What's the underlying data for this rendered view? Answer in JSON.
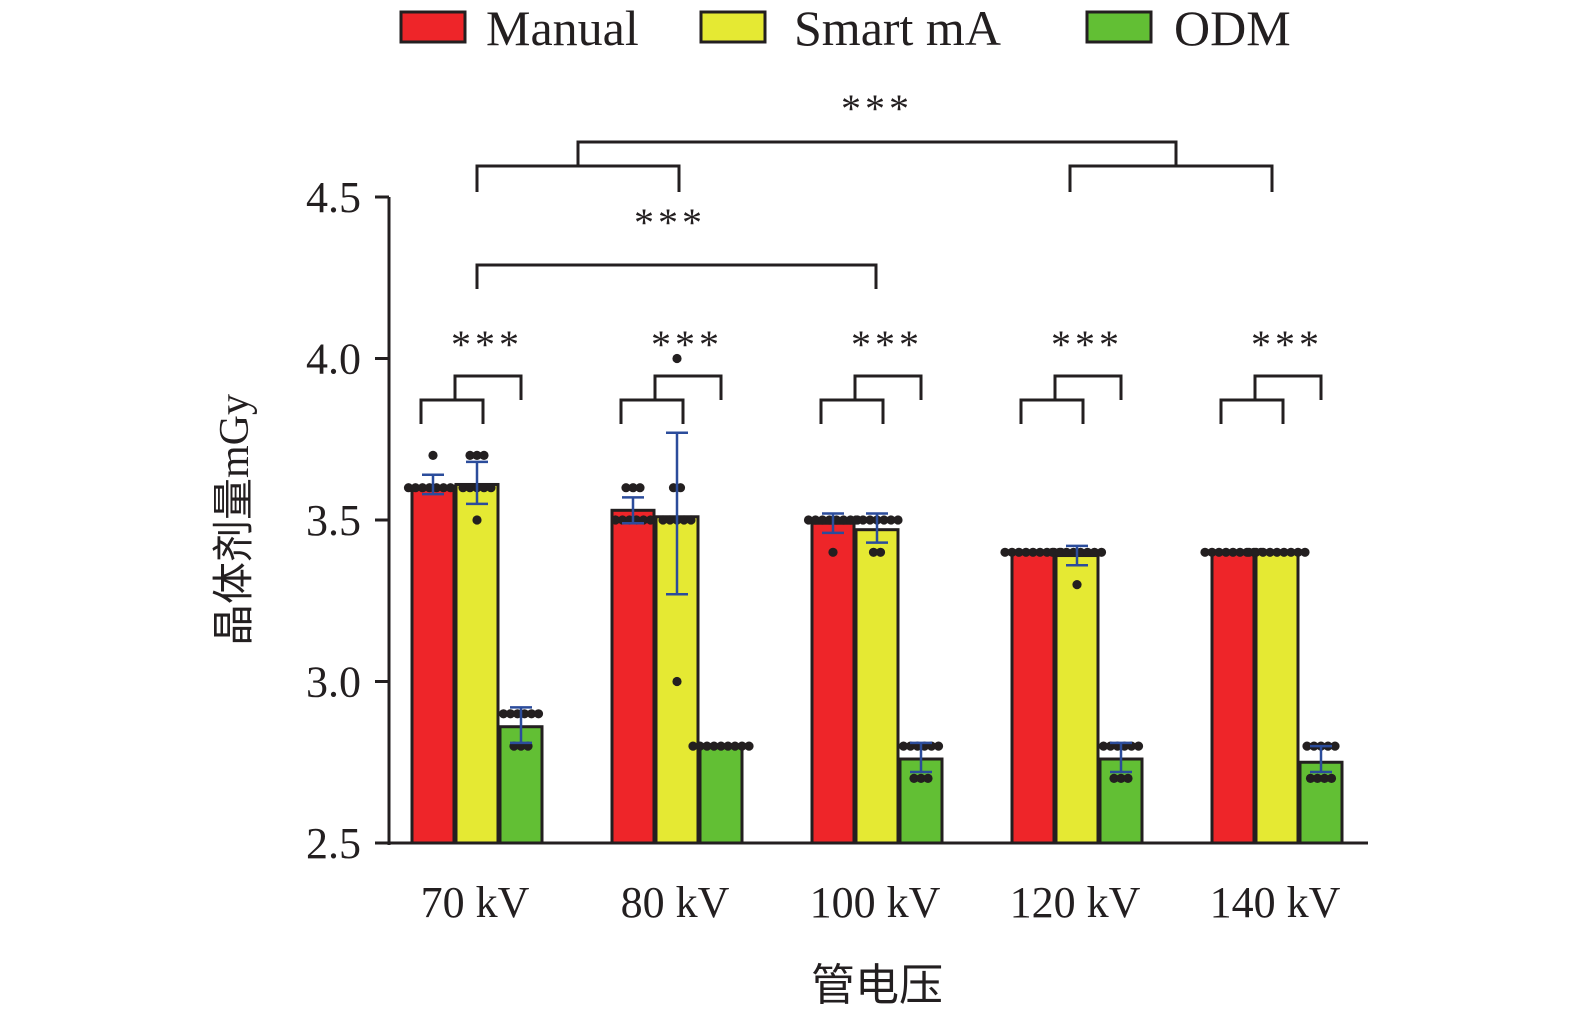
{
  "chart_data": {
    "type": "bar",
    "title": "",
    "xlabel": "管电压",
    "ylabel": "晶体剂量mGy",
    "ylim": [
      2.5,
      4.5
    ],
    "yticks": [
      "2.5",
      "3.0",
      "3.5",
      "4.0",
      "4.5"
    ],
    "ytick_values": [
      2.5,
      3.0,
      3.5,
      4.0,
      4.5
    ],
    "categories": [
      "70 kV",
      "80 kV",
      "100 kV",
      "120 kV",
      "140 kV"
    ],
    "legend_position": "top-center",
    "grid": false,
    "series": [
      {
        "name": "Manual",
        "color": "#ee2529",
        "values": [
          3.6,
          3.53,
          3.49,
          3.4,
          3.4
        ],
        "error": [
          [
            3.58,
            3.64
          ],
          [
            3.49,
            3.57
          ],
          [
            3.46,
            3.52
          ],
          [
            3.4,
            3.4
          ],
          [
            3.4,
            3.4
          ]
        ],
        "points": [
          [
            3.6,
            3.6,
            3.6,
            3.6,
            3.6,
            3.6,
            3.6,
            3.6,
            3.7
          ],
          [
            3.5,
            3.5,
            3.5,
            3.5,
            3.5,
            3.5,
            3.6,
            3.6,
            3.6
          ],
          [
            3.5,
            3.5,
            3.5,
            3.5,
            3.5,
            3.5,
            3.5,
            3.5,
            3.4
          ],
          [
            3.4,
            3.4,
            3.4,
            3.4,
            3.4,
            3.4,
            3.4,
            3.4,
            3.4
          ],
          [
            3.4,
            3.4,
            3.4,
            3.4,
            3.4,
            3.4,
            3.4,
            3.4,
            3.4
          ]
        ]
      },
      {
        "name": "Smart mA",
        "color": "#e5e933",
        "values": [
          3.61,
          3.51,
          3.47,
          3.39,
          3.4
        ],
        "error": [
          [
            3.55,
            3.68
          ],
          [
            3.27,
            3.77
          ],
          [
            3.43,
            3.52
          ],
          [
            3.36,
            3.42
          ],
          [
            3.4,
            3.4
          ]
        ],
        "points": [
          [
            3.6,
            3.6,
            3.6,
            3.6,
            3.6,
            3.7,
            3.7,
            3.7,
            3.5
          ],
          [
            3.5,
            3.5,
            3.5,
            3.5,
            3.5,
            3.6,
            3.6,
            3.0,
            4.0
          ],
          [
            3.5,
            3.5,
            3.5,
            3.5,
            3.5,
            3.5,
            3.5,
            3.4,
            3.4
          ],
          [
            3.4,
            3.4,
            3.4,
            3.4,
            3.4,
            3.4,
            3.4,
            3.4,
            3.3
          ],
          [
            3.4,
            3.4,
            3.4,
            3.4,
            3.4,
            3.4,
            3.4,
            3.4,
            3.4
          ]
        ]
      },
      {
        "name": "ODM",
        "color": "#62bf34",
        "values": [
          2.86,
          2.8,
          2.76,
          2.76,
          2.75
        ],
        "error": [
          [
            2.81,
            2.92
          ],
          [
            2.8,
            2.8
          ],
          [
            2.72,
            2.81
          ],
          [
            2.72,
            2.81
          ],
          [
            2.72,
            2.8
          ]
        ],
        "points": [
          [
            2.9,
            2.9,
            2.9,
            2.9,
            2.9,
            2.9,
            2.8,
            2.8,
            2.8
          ],
          [
            2.8,
            2.8,
            2.8,
            2.8,
            2.8,
            2.8,
            2.8,
            2.8,
            2.8
          ],
          [
            2.8,
            2.8,
            2.8,
            2.8,
            2.8,
            2.8,
            2.7,
            2.7,
            2.7
          ],
          [
            2.8,
            2.8,
            2.8,
            2.8,
            2.8,
            2.8,
            2.7,
            2.7,
            2.7
          ],
          [
            2.8,
            2.8,
            2.8,
            2.8,
            2.8,
            2.7,
            2.7,
            2.7,
            2.7
          ]
        ]
      }
    ],
    "annotations": {
      "group_significance": [
        "***",
        "***",
        "***",
        "***",
        "***"
      ],
      "cross_significance_top": "***",
      "cross_significance_mid": "***",
      "cross_top_description": "(70 kV vs 80 kV) vs (120 kV vs 140 kV)",
      "cross_mid_description": "70 kV vs 100 kV"
    }
  }
}
